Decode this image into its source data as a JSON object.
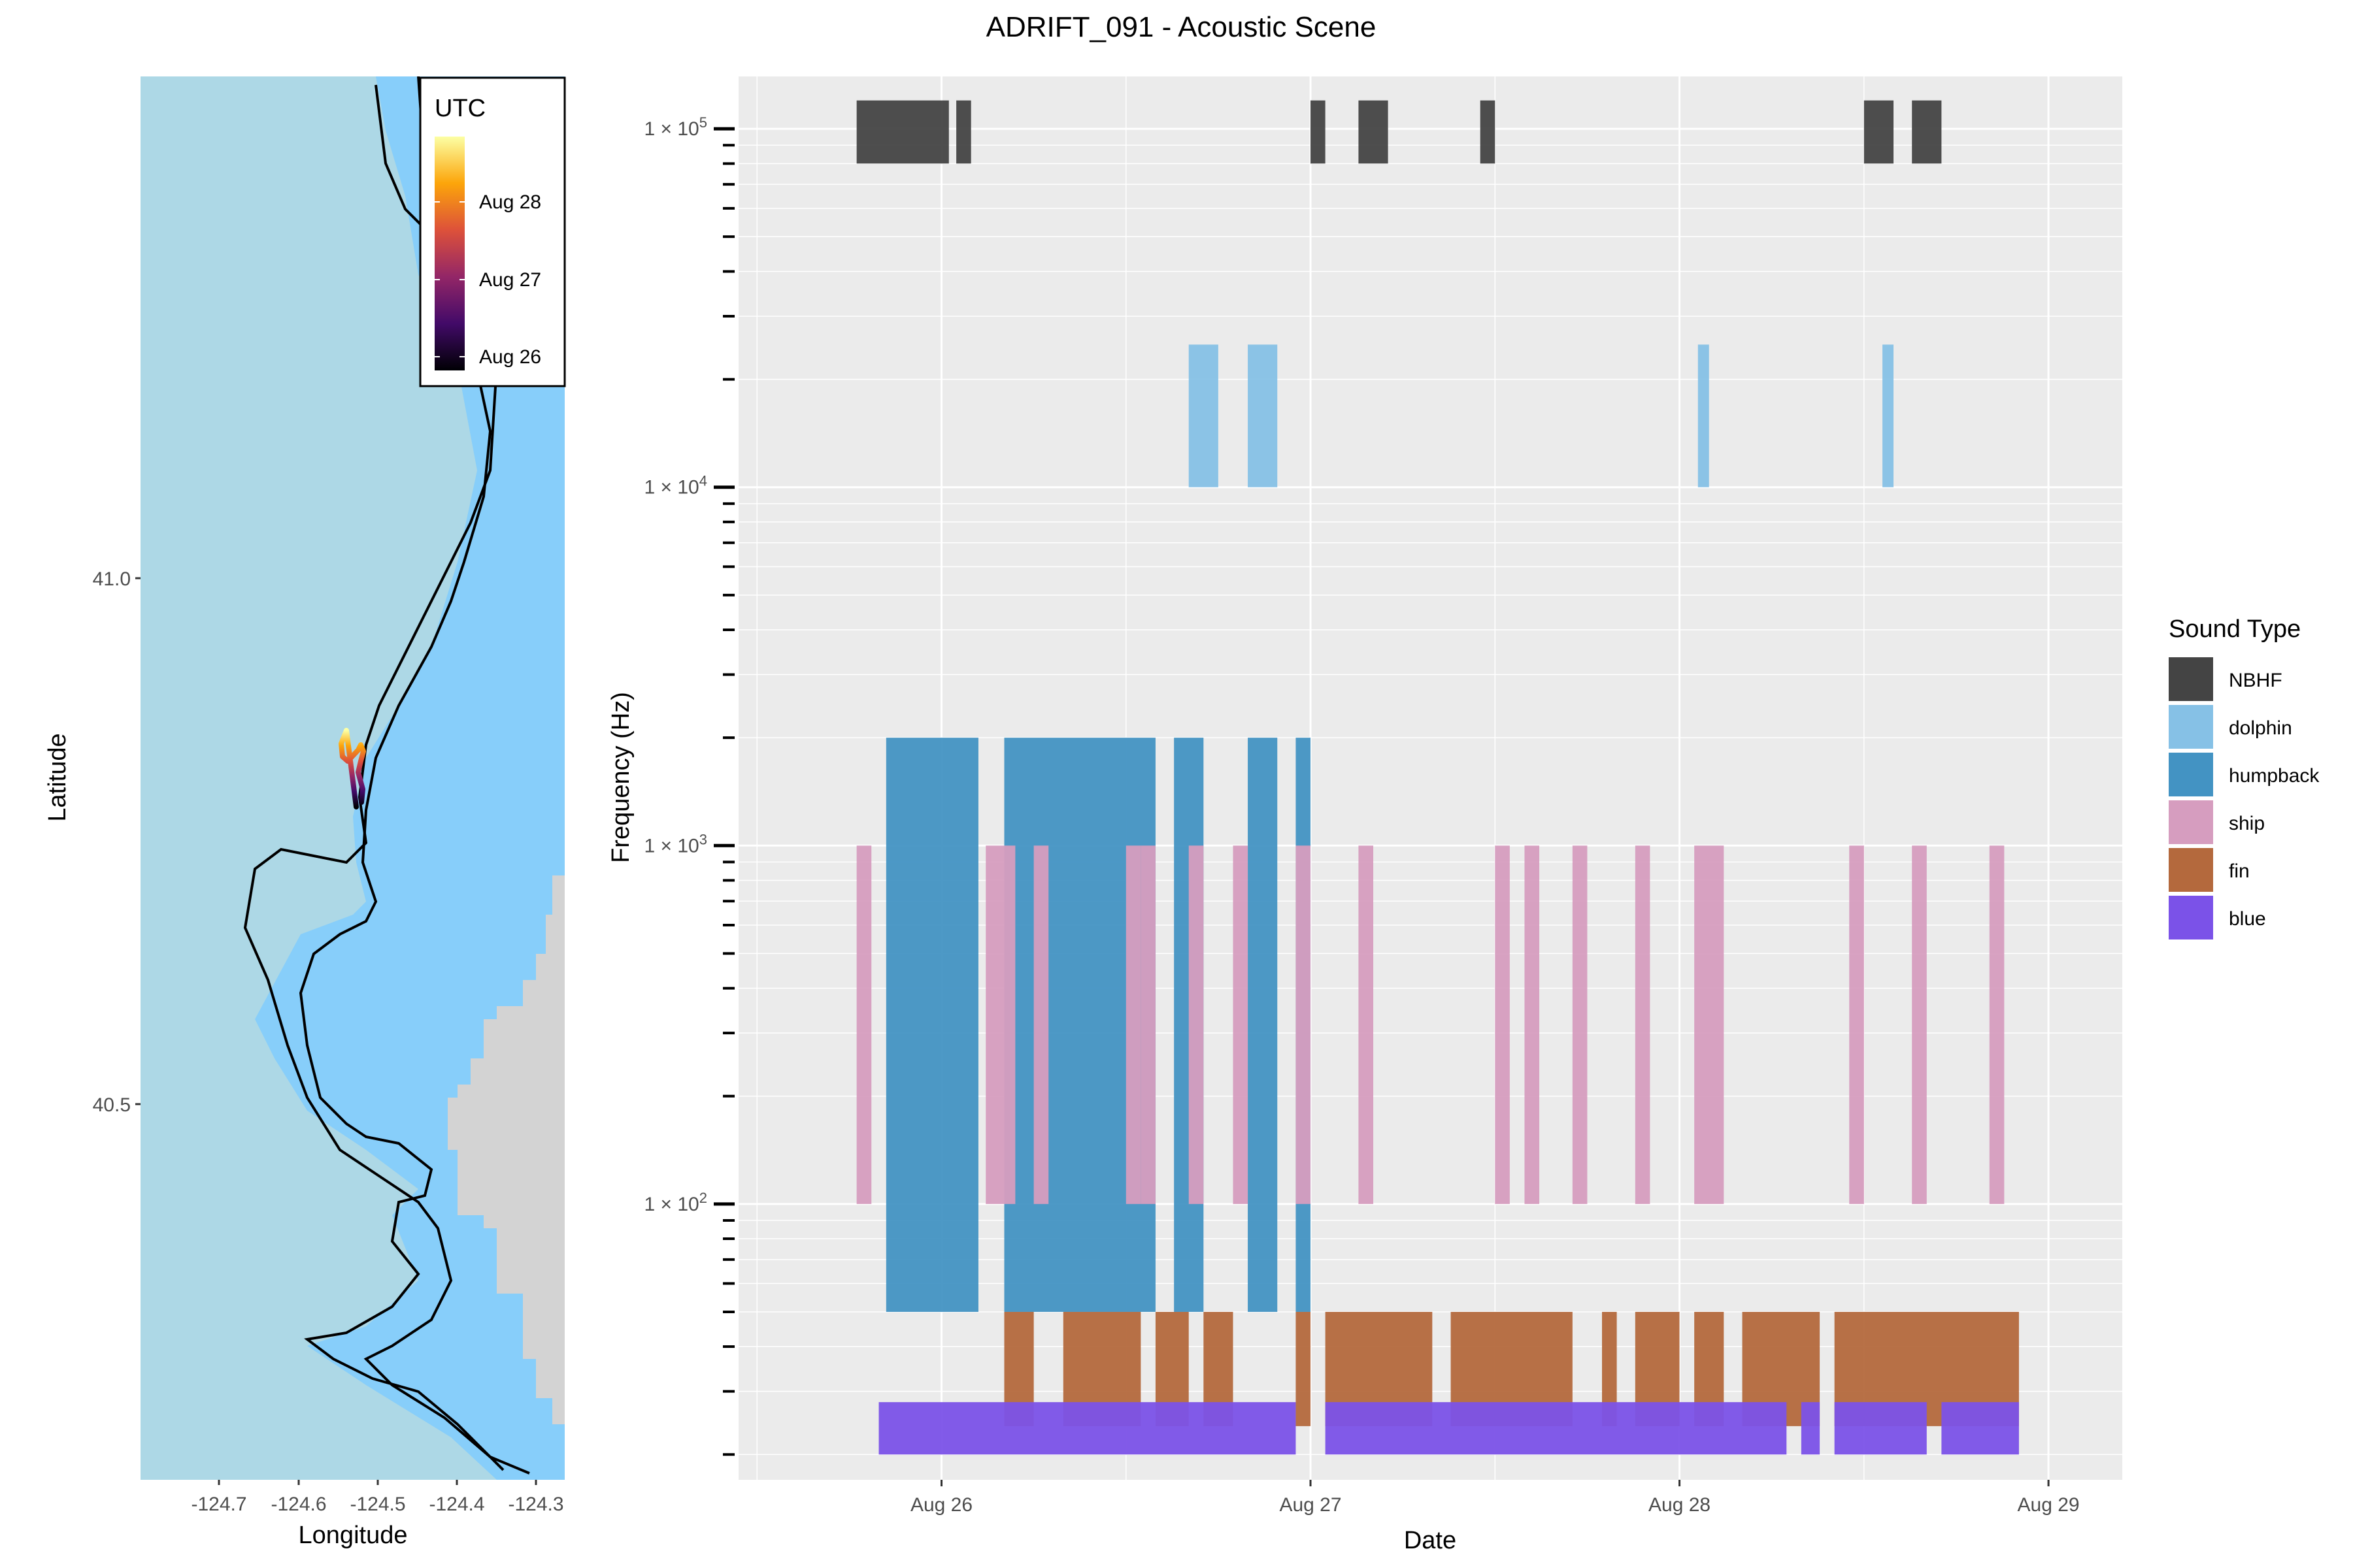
{
  "title": "ADRIFT_091 - Acoustic Scene",
  "colors": {
    "panel_bg": "#ebebeb",
    "grid": "#ffffff",
    "ocean_shallow": "#87cefa",
    "ocean_deep": "#add8e6",
    "land": "#d3d3d3",
    "contour": "#000000"
  },
  "map": {
    "xlabel": "Longitude",
    "ylabel": "Latitude",
    "x_ticks": [
      "-124.7",
      "-124.6",
      "-124.5",
      "-124.4",
      "-124.3"
    ],
    "y_ticks": [
      "41.0",
      "40.5"
    ],
    "legend": {
      "title": "UTC",
      "labels": [
        "Aug 28",
        "Aug 27",
        "Aug 26"
      ],
      "palette": "inferno"
    }
  },
  "chart_data": {
    "type": "bar",
    "title": "ADRIFT_091 - Acoustic Scene",
    "xlabel": "Date",
    "ylabel": "Frequency (Hz)",
    "y_scale": "log10",
    "x_ticks": [
      "Aug 26",
      "Aug 27",
      "Aug 28",
      "Aug 29"
    ],
    "y_ticks": [
      "1 × 10",
      "1 × 10",
      "1 × 10",
      "1 × 10"
    ],
    "y_tick_exponents": [
      "2",
      "3",
      "4",
      "5"
    ],
    "xlim_days": [
      25.45,
      29.2
    ],
    "ylim_hz": [
      17,
      140000
    ],
    "legend": {
      "title": "Sound Type",
      "placement": "right"
    },
    "series": [
      {
        "name": "NBHF",
        "color": "#444444",
        "freq_hz": [
          80000,
          120000
        ],
        "intervals_days": [
          [
            25.77,
            26.02
          ],
          [
            26.04,
            26.08
          ],
          [
            27.0,
            27.04
          ],
          [
            27.13,
            27.21
          ],
          [
            27.46,
            27.5
          ],
          [
            28.5,
            28.58
          ],
          [
            28.63,
            28.71
          ]
        ]
      },
      {
        "name": "dolphin",
        "color": "#86c1e6",
        "freq_hz": [
          10000,
          25000
        ],
        "intervals_days": [
          [
            26.67,
            26.75
          ],
          [
            26.83,
            26.91
          ],
          [
            28.05,
            28.08
          ],
          [
            28.55,
            28.58
          ]
        ]
      },
      {
        "name": "humpback",
        "color": "#4393c3",
        "freq_hz": [
          50,
          2000
        ],
        "intervals_days": [
          [
            25.85,
            26.1
          ],
          [
            26.17,
            26.58
          ],
          [
            26.63,
            26.71
          ],
          [
            26.83,
            26.91
          ],
          [
            26.96,
            27.0
          ]
        ]
      },
      {
        "name": "ship",
        "color": "#d69dbf",
        "freq_hz": [
          100,
          1000
        ],
        "intervals_days": [
          [
            25.77,
            25.81
          ],
          [
            26.12,
            26.2
          ],
          [
            26.25,
            26.29
          ],
          [
            26.5,
            26.54
          ],
          [
            26.54,
            26.58
          ],
          [
            26.67,
            26.71
          ],
          [
            26.79,
            26.83
          ],
          [
            26.96,
            27.0
          ],
          [
            27.13,
            27.17
          ],
          [
            27.5,
            27.54
          ],
          [
            27.58,
            27.62
          ],
          [
            27.71,
            27.75
          ],
          [
            27.88,
            27.92
          ],
          [
            28.04,
            28.12
          ],
          [
            28.46,
            28.5
          ],
          [
            28.63,
            28.67
          ],
          [
            28.84,
            28.88
          ]
        ]
      },
      {
        "name": "fin",
        "color": "#b4693d",
        "freq_hz": [
          24,
          50
        ],
        "intervals_days": [
          [
            26.17,
            26.25
          ],
          [
            26.33,
            26.54
          ],
          [
            26.58,
            26.67
          ],
          [
            26.71,
            26.79
          ],
          [
            26.96,
            27.0
          ],
          [
            27.04,
            27.33
          ],
          [
            27.38,
            27.71
          ],
          [
            27.79,
            27.83
          ],
          [
            27.88,
            28.0
          ],
          [
            28.04,
            28.12
          ],
          [
            28.17,
            28.38
          ],
          [
            28.42,
            28.92
          ]
        ]
      },
      {
        "name": "blue",
        "color": "#7b52e8",
        "freq_hz": [
          20,
          28
        ],
        "intervals_days": [
          [
            25.83,
            26.96
          ],
          [
            27.04,
            28.29
          ],
          [
            28.33,
            28.38
          ],
          [
            28.42,
            28.67
          ],
          [
            28.71,
            28.92
          ]
        ]
      }
    ]
  }
}
